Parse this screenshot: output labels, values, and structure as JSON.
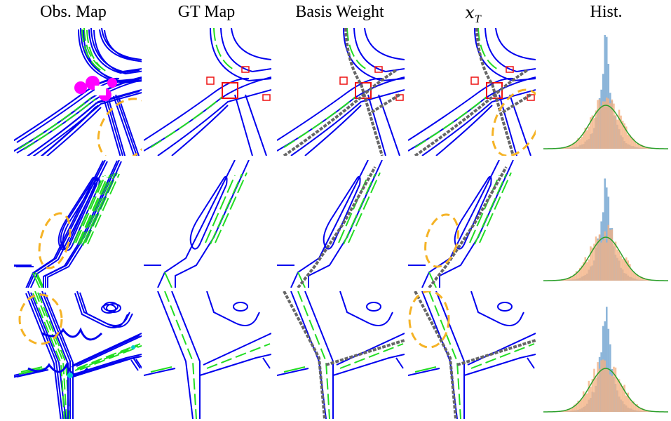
{
  "figure": {
    "columns": [
      {
        "label": "Obs. Map"
      },
      {
        "label": "GT Map"
      },
      {
        "label": "Basis Weight"
      },
      {
        "label_main": "x",
        "label_sub": "T"
      },
      {
        "label": "Hist."
      }
    ],
    "rows": 3
  },
  "colors": {
    "boundary": "#0000ee",
    "lane_divider": "#22dd22",
    "crossing": "#ee1111",
    "basis_weight": "#666666",
    "highlight_ellipse": "#f5b326",
    "obs_noise": "#ff00ff",
    "hist_blue": "#6fa3cf",
    "hist_orange": "#f4b183",
    "gaussian_curve": "#2ca02c"
  },
  "icons": {
    "annotation": "dashed-ellipse"
  }
}
